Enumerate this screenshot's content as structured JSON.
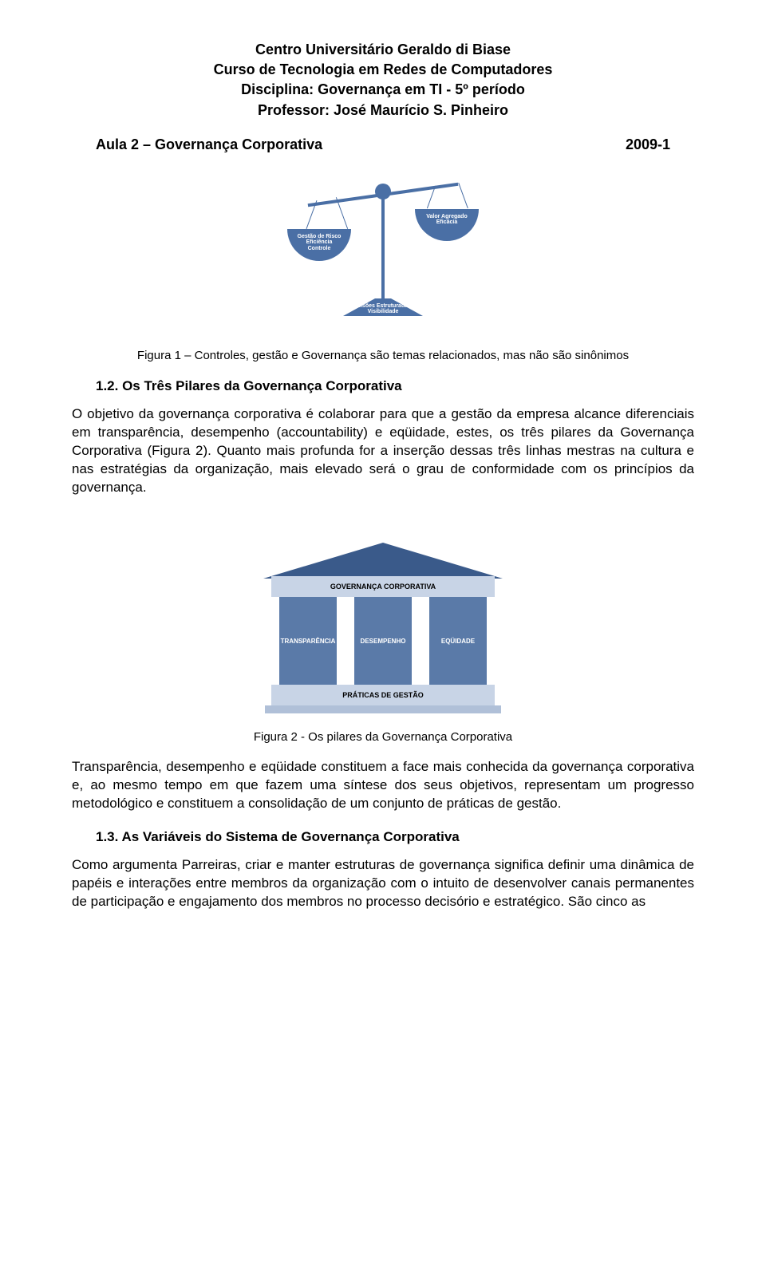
{
  "header": {
    "line1": "Centro Universitário Geraldo di Biase",
    "line2": "Curso de Tecnologia em Redes de Computadores",
    "line3": "Disciplina: Governança em TI - 5º período",
    "line4": "Professor: José Maurício S. Pinheiro"
  },
  "subheader": {
    "left": "Aula 2 – Governança Corporativa",
    "right": "2009-1"
  },
  "figure1": {
    "type": "diagram-balance-scale",
    "colors": {
      "primary": "#4a6fa5",
      "text": "#ffffff",
      "background": "#ffffff"
    },
    "left_pan_lines": [
      "Gestão de Risco",
      "Eficiência",
      "Controle"
    ],
    "right_pan_lines": [
      "Valor Agregado",
      "Eficácia"
    ],
    "base_lines": [
      "Decisões Estruturadas e",
      "Visibilidade"
    ],
    "caption": "Figura 1 – Controles, gestão e Governança são temas relacionados, mas não são sinônimos"
  },
  "section12": {
    "number_title": "1.2. Os Três Pilares da Governança Corporativa",
    "para": "O objetivo da governança corporativa é colaborar para que a gestão da empresa alcance diferenciais em transparência, desempenho (accountability) e eqüidade, estes, os três pilares da Governança Corporativa (Figura 2). Quanto mais profunda for a inserção dessas três linhas mestras na cultura e nas estratégias da organização, mais elevado será o grau de conformidade com os princípios da governança."
  },
  "figure2": {
    "type": "diagram-temple",
    "colors": {
      "roof": "#3a5a8a",
      "band": "#c8d4e6",
      "pillar": "#5a7aa8",
      "pillar_text": "#ffffff",
      "plinth": "#b0c0d8"
    },
    "roof_text": "GOVERNANÇA CORPORATIVA",
    "pillars": [
      "TRANSPARÊNCIA",
      "DESEMPENHO",
      "EQÜIDADE"
    ],
    "base_text": "PRÁTICAS DE GESTÃO",
    "caption": "Figura 2 - Os pilares da Governança Corporativa"
  },
  "para_after_fig2": "Transparência, desempenho e eqüidade constituem a face mais conhecida da governança corporativa e, ao mesmo tempo em que fazem uma síntese dos seus objetivos, representam um progresso metodológico e constituem a consolidação de um conjunto de práticas de gestão.",
  "section13": {
    "number_title": "1.3. As Variáveis do Sistema de Governança Corporativa",
    "para": "Como argumenta Parreiras, criar e manter estruturas de governança significa definir uma dinâmica de papéis e interações entre membros da organização com o intuito de desenvolver canais permanentes de participação e engajamento dos membros no processo decisório e estratégico. São cinco as"
  }
}
